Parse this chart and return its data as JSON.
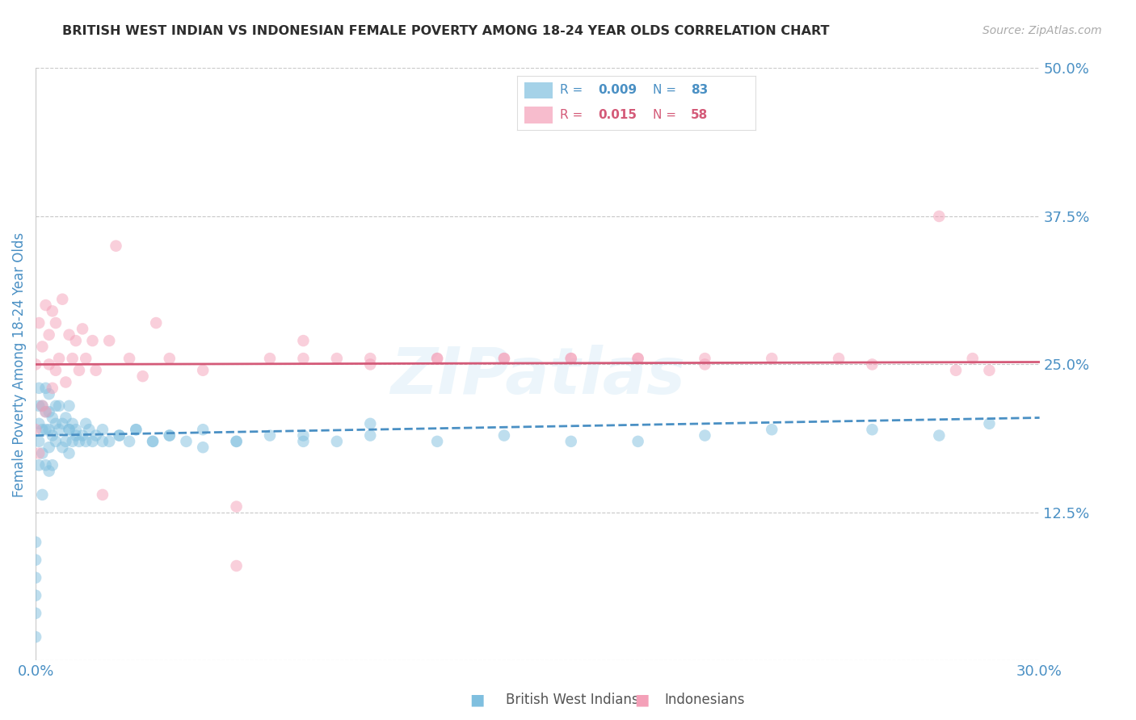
{
  "title": "BRITISH WEST INDIAN VS INDONESIAN FEMALE POVERTY AMONG 18-24 YEAR OLDS CORRELATION CHART",
  "source": "Source: ZipAtlas.com",
  "ylabel": "Female Poverty Among 18-24 Year Olds",
  "xlim": [
    0.0,
    0.3
  ],
  "ylim": [
    0.0,
    0.5
  ],
  "ytick_positions": [
    0.0,
    0.125,
    0.25,
    0.375,
    0.5
  ],
  "ytick_labels": [
    "",
    "12.5%",
    "25.0%",
    "37.5%",
    "50.0%"
  ],
  "grid_color": "#c8c8c8",
  "background_color": "#ffffff",
  "blue_color": "#7fbfdf",
  "pink_color": "#f4a0b8",
  "blue_line_color": "#4a90c4",
  "pink_line_color": "#d45a78",
  "legend_R_blue": "0.009",
  "legend_N_blue": "83",
  "legend_R_pink": "0.015",
  "legend_N_pink": "58",
  "legend_label_blue": "British West Indians",
  "legend_label_pink": "Indonesians",
  "blue_x": [
    0.0,
    0.0,
    0.0,
    0.0,
    0.0,
    0.0,
    0.001,
    0.001,
    0.001,
    0.001,
    0.001,
    0.002,
    0.002,
    0.002,
    0.002,
    0.003,
    0.003,
    0.003,
    0.003,
    0.004,
    0.004,
    0.004,
    0.004,
    0.004,
    0.005,
    0.005,
    0.005,
    0.006,
    0.006,
    0.006,
    0.007,
    0.007,
    0.008,
    0.008,
    0.009,
    0.009,
    0.01,
    0.01,
    0.01,
    0.011,
    0.011,
    0.012,
    0.013,
    0.014,
    0.015,
    0.016,
    0.017,
    0.018,
    0.02,
    0.022,
    0.025,
    0.028,
    0.03,
    0.035,
    0.04,
    0.045,
    0.05,
    0.06,
    0.07,
    0.08,
    0.09,
    0.1,
    0.12,
    0.14,
    0.16,
    0.18,
    0.2,
    0.22,
    0.25,
    0.27,
    0.285,
    0.01,
    0.012,
    0.015,
    0.02,
    0.025,
    0.03,
    0.035,
    0.04,
    0.05,
    0.06,
    0.08,
    0.1
  ],
  "blue_y": [
    0.02,
    0.04,
    0.055,
    0.07,
    0.085,
    0.1,
    0.165,
    0.185,
    0.2,
    0.215,
    0.23,
    0.14,
    0.175,
    0.195,
    0.215,
    0.165,
    0.195,
    0.21,
    0.23,
    0.16,
    0.18,
    0.195,
    0.21,
    0.225,
    0.165,
    0.19,
    0.205,
    0.185,
    0.2,
    0.215,
    0.195,
    0.215,
    0.18,
    0.2,
    0.185,
    0.205,
    0.175,
    0.195,
    0.215,
    0.185,
    0.2,
    0.195,
    0.185,
    0.19,
    0.2,
    0.195,
    0.185,
    0.19,
    0.195,
    0.185,
    0.19,
    0.185,
    0.195,
    0.185,
    0.19,
    0.185,
    0.18,
    0.185,
    0.19,
    0.185,
    0.185,
    0.19,
    0.185,
    0.19,
    0.185,
    0.185,
    0.19,
    0.195,
    0.195,
    0.19,
    0.2,
    0.195,
    0.19,
    0.185,
    0.185,
    0.19,
    0.195,
    0.185,
    0.19,
    0.195,
    0.185,
    0.19,
    0.2
  ],
  "pink_x": [
    0.0,
    0.0,
    0.001,
    0.001,
    0.002,
    0.002,
    0.003,
    0.003,
    0.004,
    0.004,
    0.005,
    0.005,
    0.006,
    0.006,
    0.007,
    0.008,
    0.009,
    0.01,
    0.011,
    0.012,
    0.013,
    0.014,
    0.015,
    0.017,
    0.018,
    0.02,
    0.022,
    0.024,
    0.028,
    0.032,
    0.036,
    0.04,
    0.05,
    0.06,
    0.07,
    0.08,
    0.09,
    0.1,
    0.12,
    0.14,
    0.16,
    0.18,
    0.2,
    0.25,
    0.27,
    0.275,
    0.28,
    0.285,
    0.06,
    0.08,
    0.1,
    0.12,
    0.14,
    0.16,
    0.18,
    0.2,
    0.22,
    0.24
  ],
  "pink_y": [
    0.195,
    0.25,
    0.175,
    0.285,
    0.215,
    0.265,
    0.21,
    0.3,
    0.25,
    0.275,
    0.23,
    0.295,
    0.245,
    0.285,
    0.255,
    0.305,
    0.235,
    0.275,
    0.255,
    0.27,
    0.245,
    0.28,
    0.255,
    0.27,
    0.245,
    0.14,
    0.27,
    0.35,
    0.255,
    0.24,
    0.285,
    0.255,
    0.245,
    0.13,
    0.255,
    0.27,
    0.255,
    0.255,
    0.255,
    0.255,
    0.255,
    0.255,
    0.255,
    0.25,
    0.375,
    0.245,
    0.255,
    0.245,
    0.08,
    0.255,
    0.25,
    0.255,
    0.255,
    0.255,
    0.255,
    0.25,
    0.255,
    0.255
  ],
  "blue_trend_x": [
    0.0,
    0.3
  ],
  "blue_trend_y": [
    0.19,
    0.205
  ],
  "pink_trend_x": [
    0.0,
    0.3
  ],
  "pink_trend_y": [
    0.25,
    0.252
  ],
  "watermark": "ZIPatlas",
  "title_color": "#2d2d2d",
  "axis_label_color": "#4a90c4",
  "tick_label_color": "#4a90c4"
}
